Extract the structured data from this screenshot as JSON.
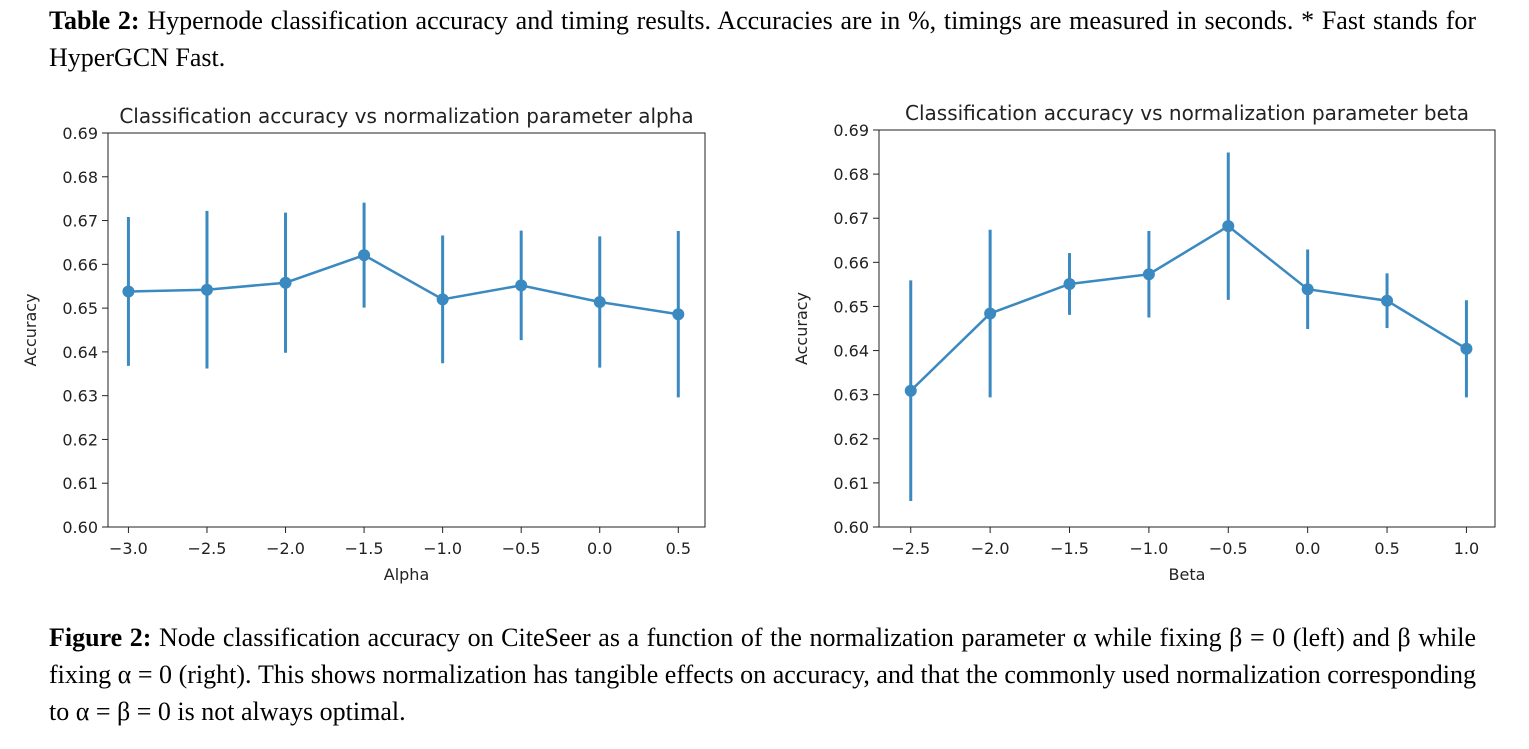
{
  "table_caption": {
    "label": "Table 2:",
    "text": "Hypernode classification accuracy and timing results. Accuracies are in %, timings are measured in seconds. * Fast stands for HyperGCN Fast."
  },
  "chart_data": [
    {
      "type": "errorbar",
      "title": "Classification accuracy vs normalization parameter alpha",
      "xlabel": "Alpha",
      "ylabel": "Accuracy",
      "color": "#3a89c0",
      "x": [
        -3,
        -2.5,
        -2,
        -1.5,
        -1,
        -0.5,
        0,
        0.5
      ],
      "values": [
        0.6538,
        0.6542,
        0.6558,
        0.6621,
        0.652,
        0.6552,
        0.6514,
        0.6486
      ],
      "errors": [
        0.017,
        0.018,
        0.016,
        0.012,
        0.0146,
        0.0125,
        0.015,
        0.019
      ],
      "xlim": [
        -3.13,
        0.67
      ],
      "ylim": [
        0.6,
        0.69
      ],
      "xticks": [
        {
          "value": -3,
          "label": "−3.0"
        },
        {
          "value": -2.5,
          "label": "−2.5"
        },
        {
          "value": -2,
          "label": "−2.0"
        },
        {
          "value": -1.5,
          "label": "−1.5"
        },
        {
          "value": -1,
          "label": "−1.0"
        },
        {
          "value": -0.5,
          "label": "−0.5"
        },
        {
          "value": 0,
          "label": "0.0"
        },
        0.5
      ],
      "yticks": [
        {
          "value": 0.6,
          "label": "0.60"
        },
        0.61,
        0.62,
        0.63,
        0.64,
        0.65,
        0.66,
        0.67,
        0.68,
        0.69
      ]
    },
    {
      "type": "errorbar",
      "title": "Classification accuracy vs normalization parameter beta",
      "xlabel": "Beta",
      "ylabel": "Accuracy",
      "color": "#3a89c0",
      "x": [
        -2.5,
        -2,
        -1.5,
        -1,
        -0.5,
        0,
        0.5,
        1
      ],
      "values": [
        0.6309,
        0.6484,
        0.6551,
        0.6573,
        0.6682,
        0.6539,
        0.6513,
        0.6404
      ],
      "errors": [
        0.025,
        0.019,
        0.007,
        0.0098,
        0.0167,
        0.009,
        0.0062,
        0.011
      ],
      "xlim": [
        -2.7,
        1.18
      ],
      "ylim": [
        0.6,
        0.69
      ],
      "xticks": [
        {
          "value": -2.5,
          "label": "−2.5"
        },
        {
          "value": -2,
          "label": "−2.0"
        },
        {
          "value": -1.5,
          "label": "−1.5"
        },
        {
          "value": -1,
          "label": "−1.0"
        },
        {
          "value": -0.5,
          "label": "−0.5"
        },
        {
          "value": 0,
          "label": "0.0"
        },
        0.5,
        {
          "value": 1,
          "label": "1.0"
        }
      ],
      "yticks": [
        {
          "value": 0.6,
          "label": "0.60"
        },
        0.61,
        0.62,
        0.63,
        0.64,
        0.65,
        0.66,
        0.67,
        0.68,
        0.69
      ]
    }
  ],
  "figure_caption": {
    "label": "Figure 2:",
    "text": "Node classification accuracy on CiteSeer as a function of the normalization parameter α while fixing β = 0 (left) and β while fixing α = 0 (right). This shows normalization has tangible effects on accuracy, and that the commonly used normalization corresponding to α = β = 0 is not always optimal."
  }
}
